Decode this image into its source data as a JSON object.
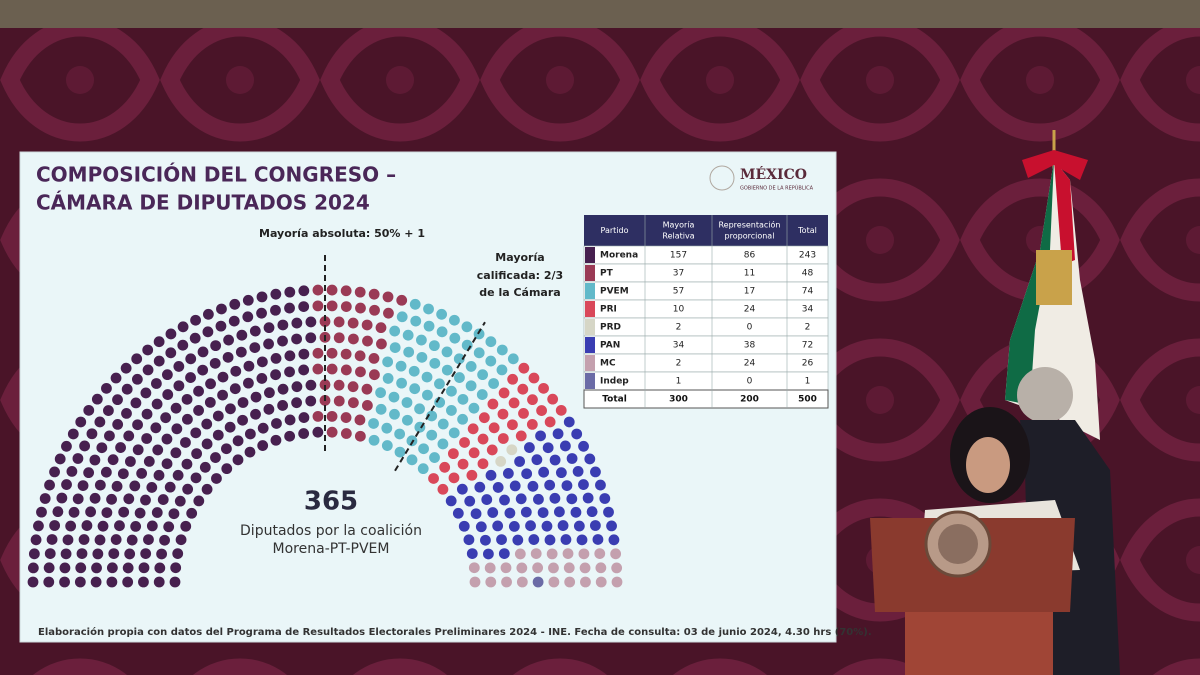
{
  "logo": {
    "title": "MÉXICO",
    "subtitle": "GOBIERNO DE LA REPÚBLICA"
  },
  "chart_data": {
    "type": "parliament",
    "title": [
      "COMPOSICIÓN DEL CONGRESO –",
      "CÁMARA DE DIPUTADOS 2024"
    ],
    "categories": [
      "Morena",
      "PT",
      "PVEM",
      "PRI",
      "PRD",
      "PAN",
      "MC",
      "Indep"
    ],
    "values": [
      243,
      48,
      74,
      34,
      2,
      72,
      26,
      1
    ],
    "colors": [
      "#47204f",
      "#9a3a55",
      "#62b9c9",
      "#d9485a",
      "#d6d6c6",
      "#3a3db2",
      "#c4a0ae",
      "#6b6ba6"
    ],
    "annotations": {
      "absolute_majority": "Mayoría absoluta: 50% + 1",
      "qualified_majority": [
        "Mayoría",
        "calificada: 2/3",
        "de la Cámara"
      ],
      "coalition_total": 365,
      "coalition_label": [
        "Diputados por la coalición",
        "Morena-PT-PVEM"
      ]
    },
    "source": "Elaboración propia con datos del Programa de Resultados Electorales Preliminares 2024 - INE. Fecha de consulta: 03 de junio 2024, 4.30 hrs (70%)."
  },
  "table": {
    "header": [
      [
        "Partido"
      ],
      [
        "Mayoría",
        "Relativa"
      ],
      [
        "Representación",
        "proporcional"
      ],
      [
        "Total"
      ]
    ],
    "rows": [
      [
        157,
        86
      ],
      [
        37,
        11
      ],
      [
        57,
        17
      ],
      [
        10,
        24
      ],
      [
        2,
        0
      ],
      [
        34,
        38
      ],
      [
        2,
        24
      ],
      [
        1,
        0
      ]
    ],
    "total_row": [
      "Total",
      300,
      200,
      500
    ]
  }
}
